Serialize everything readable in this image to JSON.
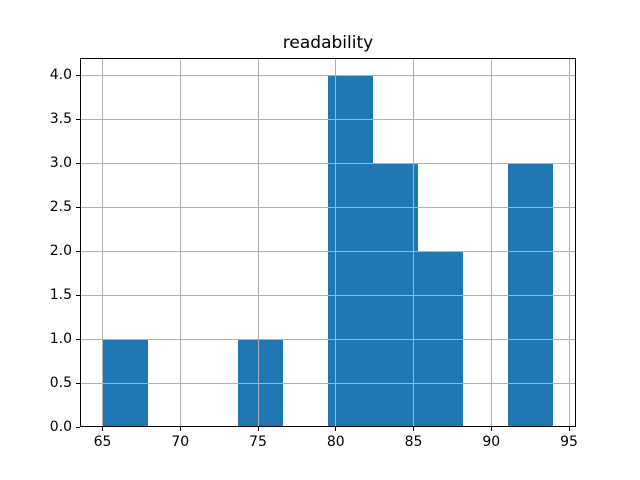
{
  "chart_data": {
    "type": "bar",
    "subtype": "histogram",
    "title": "readability",
    "xlabel": "",
    "ylabel": "",
    "xlim": [
      63.55,
      95.45
    ],
    "ylim": [
      0,
      4.2
    ],
    "xticks": [
      65,
      70,
      75,
      80,
      85,
      90,
      95
    ],
    "xtick_labels": [
      "65",
      "70",
      "75",
      "80",
      "85",
      "90",
      "95"
    ],
    "yticks": [
      0,
      0.5,
      1,
      1.5,
      2,
      2.5,
      3,
      3.5,
      4
    ],
    "ytick_labels": [
      "0.0",
      "0.5",
      "1.0",
      "1.5",
      "2.0",
      "2.5",
      "3.0",
      "3.5",
      "4.0"
    ],
    "bin_edges": [
      65.0,
      67.9,
      70.8,
      73.7,
      76.6,
      79.5,
      82.4,
      85.3,
      88.2,
      91.1,
      94.0
    ],
    "counts": [
      1,
      0,
      0,
      1,
      0,
      4,
      3,
      2,
      0,
      3
    ],
    "grid": true,
    "grid_above_bars": true,
    "legend_position": "none",
    "colors": {
      "bar": "#1f77b4",
      "grid": "#b0b0b0",
      "spine": "#000000",
      "text": "#000000",
      "background": "#ffffff"
    }
  }
}
